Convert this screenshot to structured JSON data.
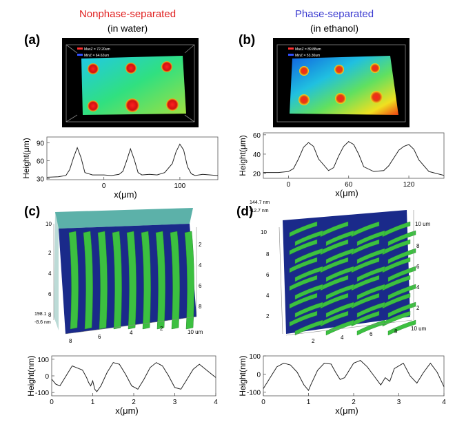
{
  "headers": {
    "a_title": "Nonphase-separated",
    "a_sub": "(in water)",
    "b_title": "Phase-separated",
    "b_sub": "(in ethanol)",
    "a_color": "#e02020",
    "b_color": "#3a3ad0"
  },
  "panels": {
    "a": "(a)",
    "b": "(b)",
    "c": "(c)",
    "d": "(d)"
  },
  "images": {
    "a_legend_max": "MaxZ = 72.20um",
    "a_legend_min": "MinZ = 64.62um",
    "b_legend_max": "MaxZ = 89.88um",
    "b_legend_min": "MinZ = 53.30um",
    "c_scale_top": "198.1",
    "c_scale_bottom": "-8.6 nm",
    "d_scale_top": "144.7 nm",
    "d_scale_bottom": "-12.7 nm",
    "c_ticks_left": [
      "10",
      "2",
      "4",
      "6",
      "8"
    ],
    "c_ticks_right": [
      "2",
      "4",
      "6",
      "8",
      "10 um"
    ],
    "c_ticks_bottom": [
      "8",
      "6",
      "4",
      "2"
    ],
    "d_ticks_left": [
      "10",
      "8",
      "6",
      "4",
      "2"
    ],
    "d_ticks_right": [
      "10 um",
      "8",
      "6",
      "4",
      "2"
    ],
    "d_ticks_bottom": [
      "2",
      "4",
      "6",
      "8",
      "10 um"
    ]
  },
  "chart_data": [
    {
      "type": "line",
      "id": "a",
      "xlabel": "x(μm)",
      "ylabel": "Height(μm)",
      "xlim": [
        -75,
        150
      ],
      "ylim": [
        28,
        100
      ],
      "xticks": [
        0,
        100
      ],
      "yticks": [
        30,
        60,
        90
      ],
      "x": [
        -75,
        -60,
        -50,
        -45,
        -40,
        -35,
        -30,
        -25,
        -15,
        0,
        10,
        20,
        25,
        30,
        35,
        40,
        45,
        50,
        60,
        70,
        80,
        90,
        95,
        100,
        105,
        110,
        115,
        120,
        130,
        150
      ],
      "y": [
        32,
        33,
        35,
        45,
        65,
        82,
        65,
        40,
        36,
        36,
        35,
        37,
        42,
        60,
        80,
        62,
        40,
        36,
        37,
        36,
        40,
        55,
        75,
        88,
        78,
        50,
        38,
        35,
        37,
        35
      ]
    },
    {
      "type": "line",
      "id": "b",
      "xlabel": "x(μm)",
      "ylabel": "Height(μm)",
      "xlim": [
        -25,
        155
      ],
      "ylim": [
        15,
        62
      ],
      "xticks": [
        0,
        60,
        120
      ],
      "yticks": [
        20,
        40,
        60
      ],
      "x": [
        -25,
        -10,
        0,
        5,
        10,
        15,
        20,
        25,
        30,
        40,
        45,
        50,
        55,
        60,
        65,
        70,
        75,
        85,
        95,
        100,
        105,
        110,
        115,
        120,
        125,
        130,
        140,
        155
      ],
      "y": [
        21,
        21,
        22,
        25,
        35,
        47,
        52,
        48,
        35,
        23,
        26,
        38,
        48,
        53,
        50,
        40,
        27,
        22,
        23,
        28,
        36,
        44,
        48,
        50,
        45,
        34,
        22,
        18
      ]
    },
    {
      "type": "line",
      "id": "c",
      "xlabel": "x(μm)",
      "ylabel": "Height(nm)",
      "xlim": [
        0,
        4
      ],
      "ylim": [
        -120,
        120
      ],
      "xticks": [
        0,
        1,
        2,
        3,
        4
      ],
      "yticks": [
        -100,
        0,
        100
      ],
      "x": [
        0,
        0.1,
        0.2,
        0.3,
        0.4,
        0.5,
        0.6,
        0.75,
        0.85,
        0.9,
        0.95,
        1.0,
        1.05,
        1.1,
        1.2,
        1.35,
        1.5,
        1.65,
        1.8,
        1.95,
        2.1,
        2.25,
        2.4,
        2.55,
        2.7,
        2.85,
        3.0,
        3.15,
        3.3,
        3.45,
        3.6,
        3.75,
        3.9,
        4.0
      ],
      "y": [
        -20,
        -50,
        -60,
        -20,
        20,
        60,
        50,
        35,
        -10,
        -40,
        -60,
        -30,
        -80,
        -95,
        -60,
        20,
        80,
        70,
        10,
        -60,
        -80,
        -20,
        50,
        80,
        60,
        0,
        -70,
        -80,
        -20,
        40,
        70,
        40,
        10,
        -10
      ]
    },
    {
      "type": "line",
      "id": "d",
      "xlabel": "x(μm)",
      "ylabel": "Height(nm)",
      "xlim": [
        0,
        4
      ],
      "ylim": [
        -120,
        100
      ],
      "xticks": [
        0,
        1,
        2,
        3,
        4
      ],
      "yticks": [
        -100,
        0,
        100
      ],
      "x": [
        0,
        0.15,
        0.3,
        0.45,
        0.6,
        0.75,
        0.9,
        1.0,
        1.05,
        1.2,
        1.35,
        1.5,
        1.6,
        1.7,
        1.8,
        2.0,
        2.15,
        2.3,
        2.45,
        2.6,
        2.7,
        2.8,
        2.9,
        3.1,
        3.25,
        3.4,
        3.55,
        3.7,
        3.85,
        4.0
      ],
      "y": [
        -80,
        -20,
        40,
        60,
        50,
        10,
        -60,
        -90,
        -60,
        20,
        60,
        55,
        10,
        -30,
        -20,
        60,
        75,
        40,
        -10,
        -60,
        -20,
        -40,
        30,
        60,
        -10,
        -50,
        10,
        60,
        10,
        -70
      ]
    }
  ]
}
